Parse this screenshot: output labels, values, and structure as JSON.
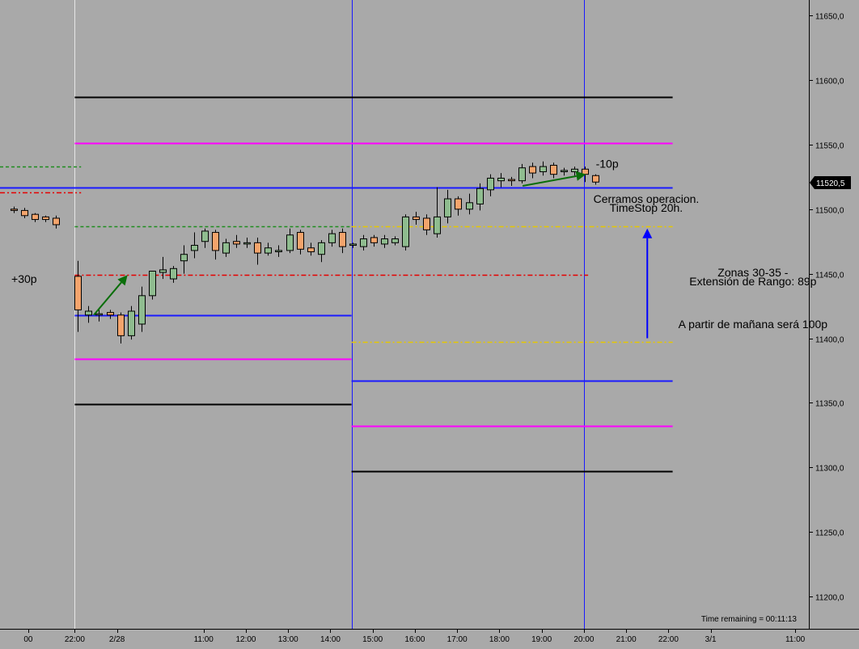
{
  "chart_data": {
    "type": "candlestick",
    "y_axis": {
      "ylim": [
        11175,
        11662
      ],
      "ticks": [
        11200,
        11250,
        11300,
        11350,
        11400,
        11450,
        11500,
        11550,
        11600,
        11650
      ],
      "tick_labels": [
        "11200,0",
        "11250,0",
        "11300,0",
        "11350,0",
        "11400,0",
        "11450,0",
        "11500,0",
        "11550,0",
        "11600,0",
        "11650,0"
      ],
      "current_price": 11520.5,
      "current_price_label": "11520,5"
    },
    "x_axis": {
      "tick_labels": [
        "00",
        "22:00",
        "2/28",
        "11:00",
        "12:00",
        "13:00",
        "14:00",
        "15:00",
        "16:00",
        "17:00",
        "18:00",
        "19:00",
        "20:00",
        "21:00",
        "22:00",
        "3/1",
        "11:00"
      ],
      "tick_slots": [
        -0.5,
        1.7,
        3.7,
        7.8,
        9.8,
        11.8,
        13.8,
        15.8,
        17.8,
        19.8,
        21.8,
        23.8,
        25.8,
        27.8,
        29.8,
        31.8,
        35.8
      ]
    },
    "candles": [
      {
        "slot": -1.2,
        "o": 11500,
        "h": 11502,
        "c": 11499,
        "l": 11497
      },
      {
        "slot": -0.7,
        "o": 11499,
        "h": 11501,
        "c": 11495,
        "l": 11493
      },
      {
        "slot": -0.2,
        "o": 11496,
        "h": 11497,
        "c": 11492,
        "l": 11490
      },
      {
        "slot": 0.3,
        "o": 11494,
        "h": 11495,
        "c": 11492,
        "l": 11490
      },
      {
        "slot": 0.8,
        "o": 11493,
        "h": 11495,
        "c": 11488,
        "l": 11485
      },
      {
        "slot": 1.85,
        "o": 11448,
        "h": 11460,
        "c": 11422,
        "l": 11405
      },
      {
        "slot": 2.35,
        "o": 11418,
        "h": 11425,
        "c": 11421,
        "l": 11412
      },
      {
        "slot": 2.85,
        "o": 11418,
        "h": 11422,
        "c": 11419,
        "l": 11413
      },
      {
        "slot": 3.35,
        "o": 11420,
        "h": 11422,
        "c": 11418,
        "l": 11415
      },
      {
        "slot": 3.85,
        "o": 11418,
        "h": 11420,
        "c": 11402,
        "l": 11396
      },
      {
        "slot": 4.35,
        "o": 11402,
        "h": 11425,
        "c": 11421,
        "l": 11399
      },
      {
        "slot": 4.85,
        "o": 11411,
        "h": 11440,
        "c": 11433,
        "l": 11405
      },
      {
        "slot": 5.35,
        "o": 11433,
        "h": 11448,
        "c": 11452,
        "l": 11430
      },
      {
        "slot": 5.85,
        "o": 11451,
        "h": 11463,
        "c": 11453,
        "l": 11446
      },
      {
        "slot": 6.35,
        "o": 11446,
        "h": 11456,
        "c": 11454,
        "l": 11443
      },
      {
        "slot": 6.85,
        "o": 11460,
        "h": 11472,
        "c": 11465,
        "l": 11450
      },
      {
        "slot": 7.35,
        "o": 11468,
        "h": 11482,
        "c": 11472,
        "l": 11462
      },
      {
        "slot": 7.85,
        "o": 11475,
        "h": 11485,
        "c": 11483,
        "l": 11470
      },
      {
        "slot": 8.35,
        "o": 11482,
        "h": 11484,
        "c": 11468,
        "l": 11461
      },
      {
        "slot": 8.85,
        "o": 11466,
        "h": 11477,
        "c": 11474,
        "l": 11463
      },
      {
        "slot": 9.35,
        "o": 11475,
        "h": 11480,
        "c": 11473,
        "l": 11470
      },
      {
        "slot": 9.85,
        "o": 11473,
        "h": 11478,
        "c": 11474,
        "l": 11470
      },
      {
        "slot": 10.35,
        "o": 11474,
        "h": 11478,
        "c": 11466,
        "l": 11457
      },
      {
        "slot": 10.85,
        "o": 11466,
        "h": 11474,
        "c": 11470,
        "l": 11464
      },
      {
        "slot": 11.35,
        "o": 11467,
        "h": 11472,
        "c": 11468,
        "l": 11463
      },
      {
        "slot": 11.85,
        "o": 11468,
        "h": 11485,
        "c": 11480,
        "l": 11466
      },
      {
        "slot": 12.35,
        "o": 11482,
        "h": 11484,
        "c": 11469,
        "l": 11465
      },
      {
        "slot": 12.85,
        "o": 11470,
        "h": 11474,
        "c": 11467,
        "l": 11464
      },
      {
        "slot": 13.35,
        "o": 11465,
        "h": 11476,
        "c": 11474,
        "l": 11459
      },
      {
        "slot": 13.85,
        "o": 11474,
        "h": 11484,
        "c": 11481,
        "l": 11471
      },
      {
        "slot": 14.35,
        "o": 11482,
        "h": 11485,
        "c": 11471,
        "l": 11466
      },
      {
        "slot": 14.85,
        "o": 11472,
        "h": 11474,
        "c": 11473,
        "l": 11470
      },
      {
        "slot": 15.35,
        "o": 11471,
        "h": 11480,
        "c": 11477,
        "l": 11468
      },
      {
        "slot": 15.85,
        "o": 11478,
        "h": 11480,
        "c": 11474,
        "l": 11471
      },
      {
        "slot": 16.35,
        "o": 11473,
        "h": 11480,
        "c": 11477,
        "l": 11470
      },
      {
        "slot": 16.85,
        "o": 11474,
        "h": 11479,
        "c": 11477,
        "l": 11472
      },
      {
        "slot": 17.35,
        "o": 11471,
        "h": 11496,
        "c": 11494,
        "l": 11468
      },
      {
        "slot": 17.85,
        "o": 11494,
        "h": 11498,
        "c": 11492,
        "l": 11488
      },
      {
        "slot": 18.35,
        "o": 11493,
        "h": 11496,
        "c": 11484,
        "l": 11480
      },
      {
        "slot": 18.85,
        "o": 11481,
        "h": 11517,
        "c": 11494,
        "l": 11478
      },
      {
        "slot": 19.35,
        "o": 11494,
        "h": 11515,
        "c": 11508,
        "l": 11489
      },
      {
        "slot": 19.85,
        "o": 11508,
        "h": 11510,
        "c": 11500,
        "l": 11495
      },
      {
        "slot": 20.35,
        "o": 11500,
        "h": 11512,
        "c": 11505,
        "l": 11496
      },
      {
        "slot": 20.85,
        "o": 11504,
        "h": 11520,
        "c": 11516,
        "l": 11499
      },
      {
        "slot": 21.35,
        "o": 11515,
        "h": 11527,
        "c": 11524,
        "l": 11510
      },
      {
        "slot": 21.85,
        "o": 11522,
        "h": 11528,
        "c": 11524,
        "l": 11517
      },
      {
        "slot": 22.35,
        "o": 11523,
        "h": 11525,
        "c": 11522,
        "l": 11518
      },
      {
        "slot": 22.85,
        "o": 11522,
        "h": 11535,
        "c": 11532,
        "l": 11520
      },
      {
        "slot": 23.35,
        "o": 11533,
        "h": 11536,
        "c": 11528,
        "l": 11524
      },
      {
        "slot": 23.85,
        "o": 11529,
        "h": 11537,
        "c": 11533,
        "l": 11526
      },
      {
        "slot": 24.35,
        "o": 11534,
        "h": 11536,
        "c": 11527,
        "l": 11524
      },
      {
        "slot": 24.85,
        "o": 11529,
        "h": 11532,
        "c": 11530,
        "l": 11526
      },
      {
        "slot": 25.35,
        "o": 11529,
        "h": 11533,
        "c": 11531,
        "l": 11526
      },
      {
        "slot": 25.85,
        "o": 11531,
        "h": 11533,
        "c": 11527,
        "l": 11521
      },
      {
        "slot": 26.35,
        "o": 11526,
        "h": 11527,
        "c": 11521,
        "l": 11519
      }
    ],
    "vlines": [
      {
        "slot": 1.7,
        "color": "#e6e6e6"
      },
      {
        "slot": 14.8,
        "color": "#1a1aff"
      },
      {
        "slot": 25.8,
        "color": "#1a1aff"
      }
    ],
    "levels": [
      {
        "y": 11533,
        "from": -2,
        "to": 2.0,
        "color": "#1e8c1e",
        "style": "dashed"
      },
      {
        "y": 11513,
        "from": -2,
        "to": 2.0,
        "color": "#e60000",
        "style": "dashdot"
      },
      {
        "y": 11587,
        "from": 1.7,
        "to": 30.0,
        "color": "#000000",
        "style": "solid"
      },
      {
        "y": 11551,
        "from": 1.7,
        "to": 30.0,
        "color": "#ff00ff",
        "style": "solid"
      },
      {
        "y": 11517,
        "from": -2,
        "to": 30.0,
        "color": "#1a1aff",
        "style": "solid"
      },
      {
        "y": 11487,
        "from": 1.7,
        "to": 14.8,
        "color": "#1e8c1e",
        "style": "dashed"
      },
      {
        "y": 11487,
        "from": 14.8,
        "to": 30.0,
        "color": "#e6c800",
        "style": "dashdot"
      },
      {
        "y": 11449,
        "from": 1.7,
        "to": 26.0,
        "color": "#e60000",
        "style": "dashdot"
      },
      {
        "y": 11418,
        "from": 1.7,
        "to": 14.8,
        "color": "#1a1aff",
        "style": "solid"
      },
      {
        "y": 11384,
        "from": 1.7,
        "to": 14.8,
        "color": "#ff00ff",
        "style": "solid"
      },
      {
        "y": 11349,
        "from": 1.7,
        "to": 14.8,
        "color": "#000000",
        "style": "solid"
      },
      {
        "y": 11397,
        "from": 14.8,
        "to": 30.0,
        "color": "#e6c800",
        "style": "dashdot"
      },
      {
        "y": 11367,
        "from": 14.8,
        "to": 30.0,
        "color": "#1a1aff",
        "style": "solid"
      },
      {
        "y": 11332,
        "from": 14.8,
        "to": 30.0,
        "color": "#ff00ff",
        "style": "solid"
      },
      {
        "y": 11297,
        "from": 14.8,
        "to": 30.0,
        "color": "#000000",
        "style": "solid"
      }
    ],
    "arrows": [
      {
        "slot1": 2.6,
        "y1": 11418,
        "slot2": 4.2,
        "y2": 11449,
        "color": "#0a6e0a"
      },
      {
        "slot1": 22.9,
        "y1": 11518,
        "slot2": 25.9,
        "y2": 11527,
        "color": "#0a6e0a"
      },
      {
        "slot1": 28.8,
        "y1": 11400,
        "slot2": 28.8,
        "y2": 11485,
        "color": "#0000ff"
      }
    ],
    "annotations": [
      {
        "text": "+30p",
        "slot": -1.3,
        "y": 11443,
        "align": "start"
      },
      {
        "text": "-10p",
        "slot": 26.9,
        "y": 11532,
        "align": "middle"
      },
      {
        "text": "Cerramos operacion.",
        "slot": 28.75,
        "y": 11505,
        "align": "middle"
      },
      {
        "text": "TimeStop 20h.",
        "slot": 28.75,
        "y": 11498,
        "align": "middle"
      },
      {
        "text": "Zonas 30-35 -",
        "slot": 33.8,
        "y": 11448,
        "align": "middle"
      },
      {
        "text": "Extensión de Rango: 89p",
        "slot": 33.8,
        "y": 11441,
        "align": "middle"
      },
      {
        "text": "A partir de mañana será 100p",
        "slot": 33.8,
        "y": 11408,
        "align": "middle"
      }
    ],
    "footer_text": "Time remaining = 00:11:13",
    "colors": {
      "up": "#8fbc8f",
      "down": "#f4a46c",
      "background": "#a9a9a9"
    }
  }
}
